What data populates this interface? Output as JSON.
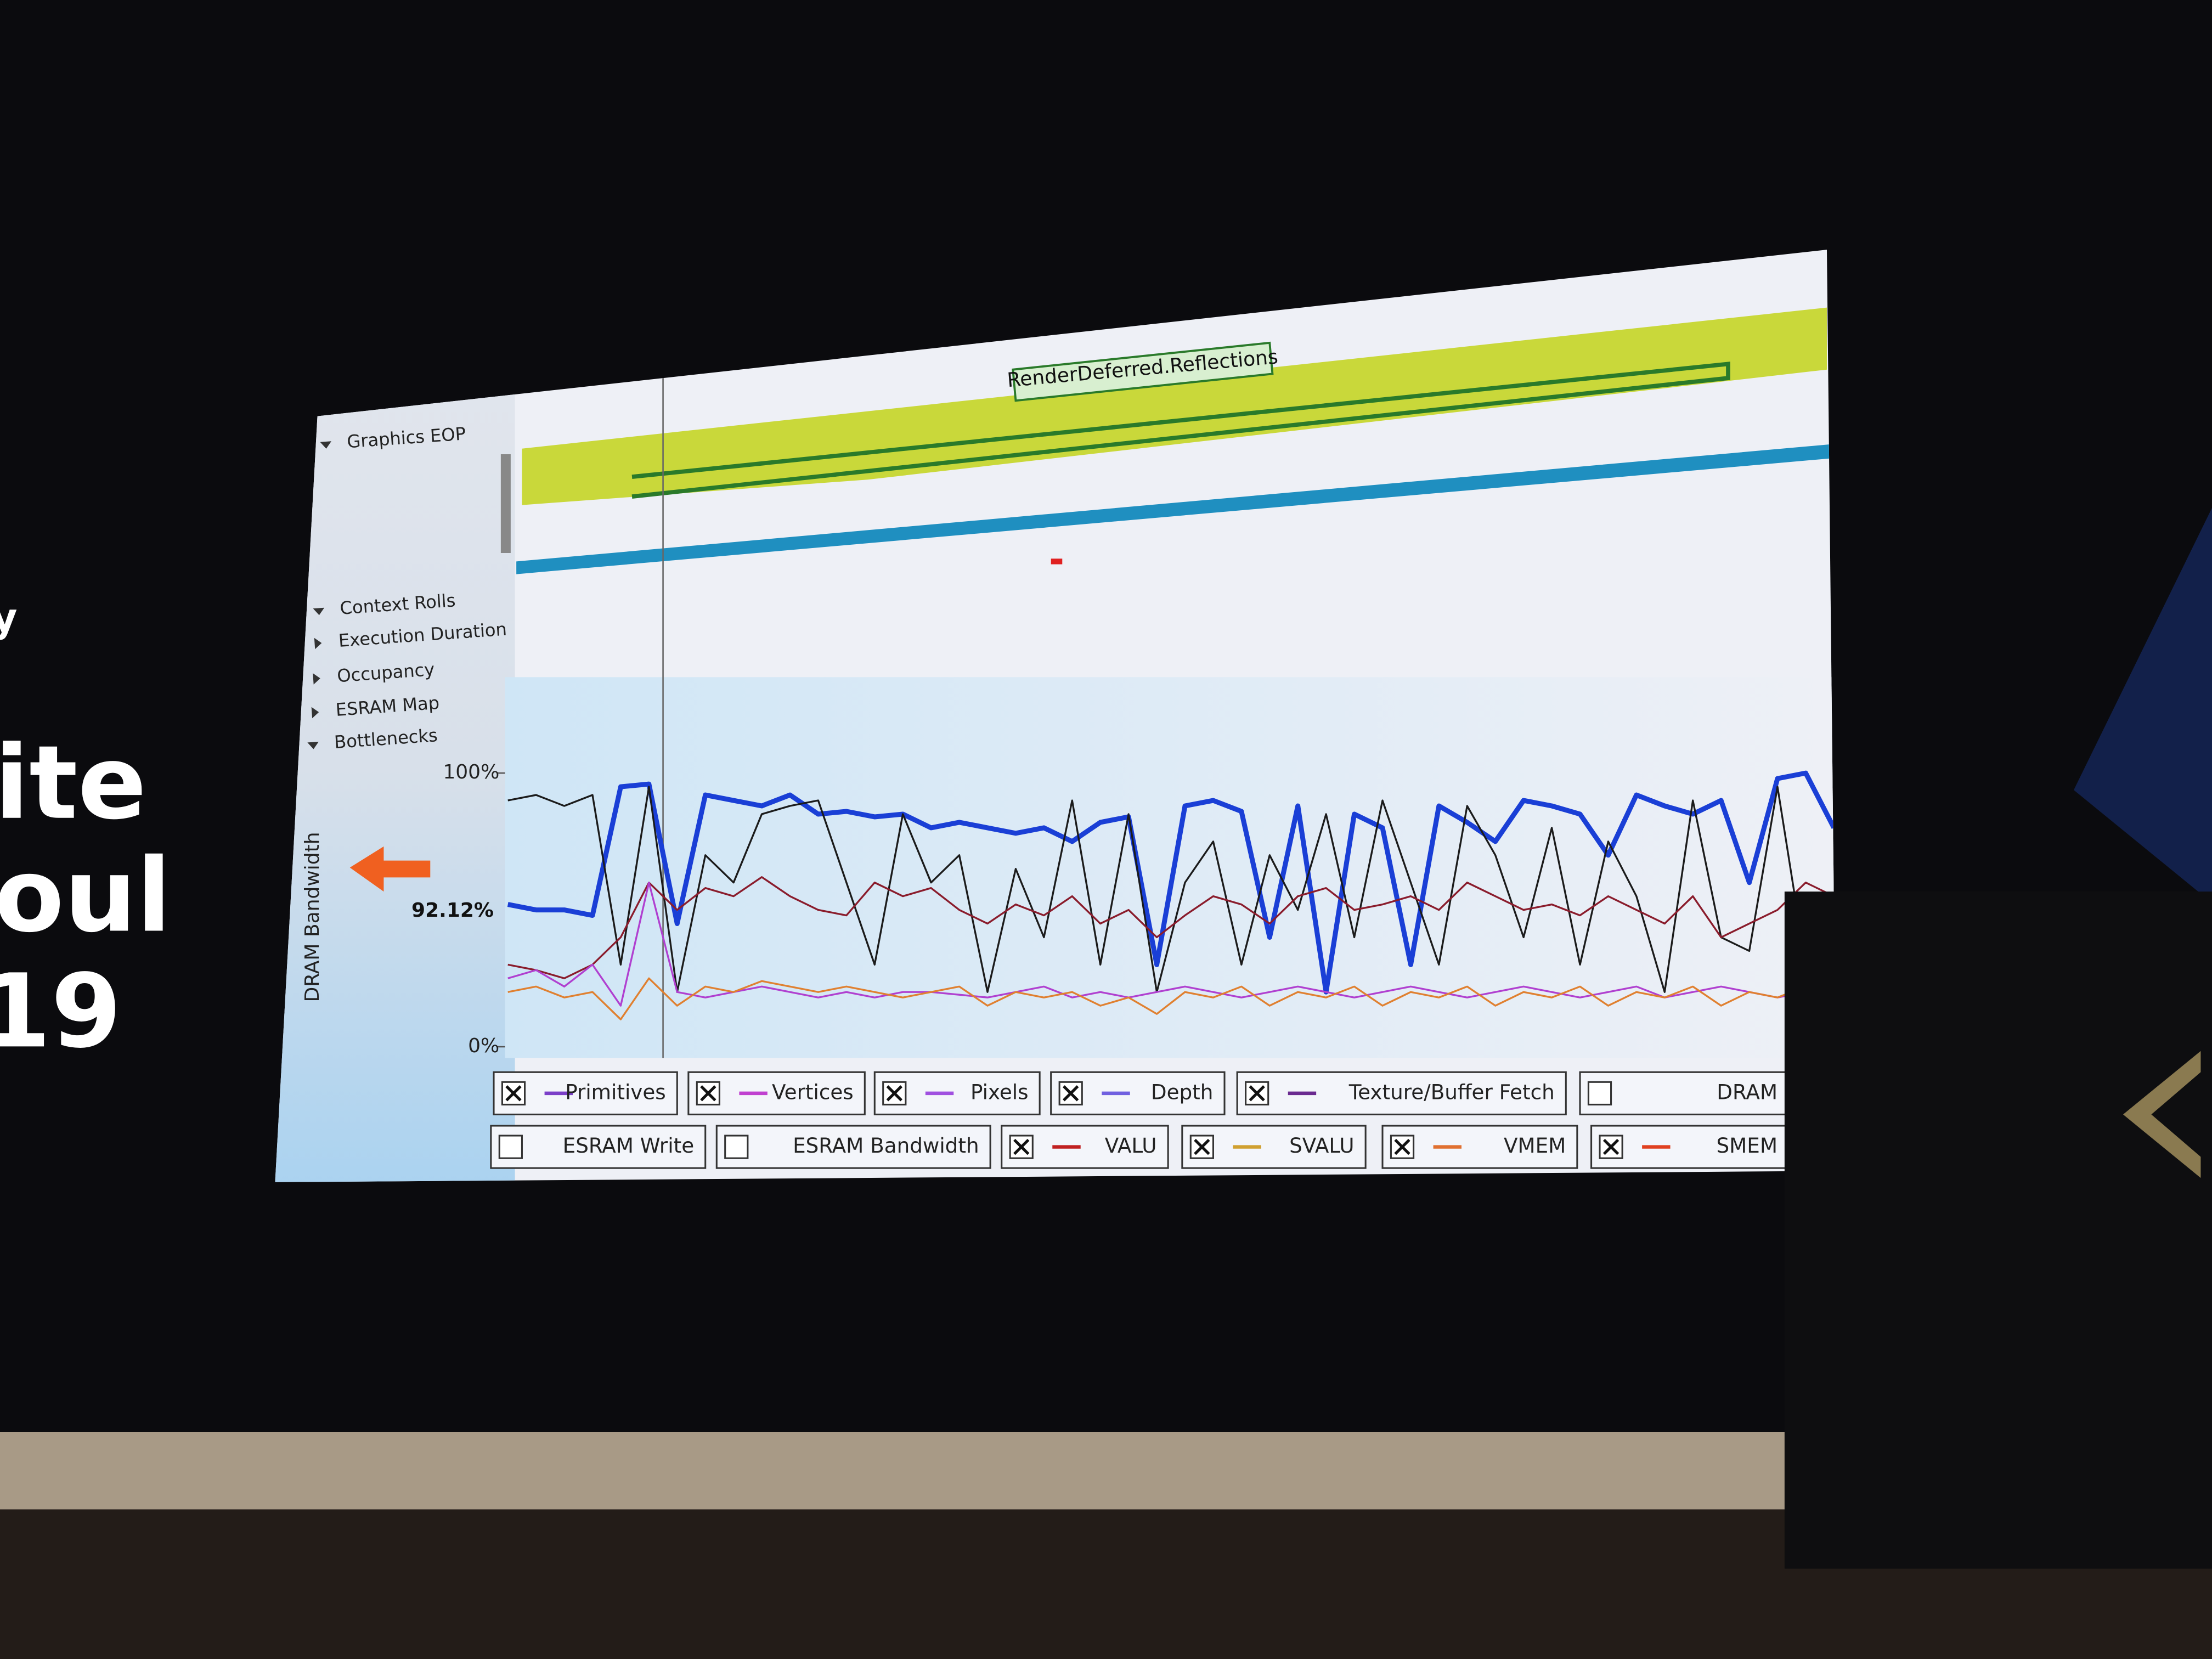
{
  "slide": {
    "fragments": [
      "y",
      "ite",
      "oul",
      "19"
    ]
  },
  "profiler": {
    "tree": [
      {
        "label": "Graphics EOP",
        "expanded": true
      },
      {
        "label": "Context Rolls",
        "expanded": true
      },
      {
        "label": "Execution Duration",
        "expanded": false
      },
      {
        "label": "Occupancy",
        "expanded": false
      },
      {
        "label": "ESRAM Map",
        "expanded": false
      },
      {
        "label": "Bottlenecks",
        "expanded": true
      }
    ],
    "marker_label": "RenderDeferred.Reflections",
    "chart": {
      "type": "line",
      "y_label": "DRAM Bandwidth",
      "current_label": "92.12%",
      "ylim": [
        0,
        100
      ],
      "yticks": [
        {
          "value": 0,
          "label": "0%"
        },
        {
          "value": 100,
          "label": "100%"
        }
      ],
      "series": [
        {
          "color": "#1a3fd6",
          "values": [
            52,
            50,
            50,
            48,
            95,
            96,
            45,
            92,
            90,
            88,
            92,
            85,
            86,
            84,
            85,
            80,
            82,
            80,
            78,
            80,
            75,
            82,
            84,
            30,
            88,
            90,
            86,
            40,
            88,
            20,
            85,
            80,
            30,
            88,
            82,
            75,
            90,
            88,
            85,
            70,
            92,
            88,
            85,
            90,
            60,
            98,
            100,
            80
          ]
        },
        {
          "color": "#1b1b1b",
          "values": [
            90,
            92,
            88,
            92,
            30,
            95,
            20,
            70,
            60,
            85,
            88,
            90,
            60,
            30,
            85,
            60,
            70,
            20,
            65,
            40,
            90,
            30,
            85,
            20,
            60,
            75,
            30,
            70,
            50,
            85,
            40,
            90,
            60,
            30,
            88,
            70,
            40,
            80,
            30,
            75,
            55,
            20,
            90,
            40,
            35,
            95,
            30,
            40
          ]
        },
        {
          "color": "#8a1c2c",
          "values": [
            30,
            28,
            25,
            30,
            40,
            60,
            50,
            58,
            55,
            62,
            55,
            50,
            48,
            60,
            55,
            58,
            50,
            45,
            52,
            48,
            55,
            45,
            50,
            40,
            48,
            55,
            52,
            45,
            55,
            58,
            50,
            52,
            55,
            50,
            60,
            55,
            50,
            52,
            48,
            55,
            50,
            45,
            55,
            40,
            45,
            50,
            60,
            55
          ]
        },
        {
          "color": "#b040d0",
          "values": [
            25,
            28,
            22,
            30,
            15,
            60,
            20,
            18,
            20,
            22,
            20,
            18,
            20,
            18,
            20,
            20,
            19,
            18,
            20,
            22,
            18,
            20,
            18,
            20,
            22,
            20,
            18,
            20,
            22,
            20,
            18,
            20,
            22,
            20,
            18,
            20,
            22,
            20,
            18,
            20,
            22,
            18,
            20,
            22,
            20,
            18,
            20,
            22
          ]
        },
        {
          "color": "#e08030",
          "values": [
            20,
            22,
            18,
            20,
            10,
            25,
            15,
            22,
            20,
            24,
            22,
            20,
            22,
            20,
            18,
            20,
            22,
            15,
            20,
            18,
            20,
            15,
            18,
            12,
            20,
            18,
            22,
            15,
            20,
            18,
            22,
            15,
            20,
            18,
            22,
            15,
            20,
            18,
            22,
            15,
            20,
            18,
            22,
            15,
            20,
            18,
            22,
            20
          ]
        }
      ]
    },
    "legend": [
      [
        {
          "label": "Primitives",
          "checked": true,
          "color": "#7b3fc8"
        },
        {
          "label": "Vertices",
          "checked": true,
          "color": "#c040d0"
        },
        {
          "label": "Pixels",
          "checked": true,
          "color": "#a050e0"
        },
        {
          "label": "Depth",
          "checked": true,
          "color": "#7060e0"
        },
        {
          "label": "Texture/Buffer Fetch",
          "checked": true,
          "color": "#6a2a90"
        },
        {
          "label": "DRAM",
          "checked": false
        }
      ],
      [
        {
          "label": "ESRAM Write",
          "checked": false
        },
        {
          "label": "ESRAM Bandwidth",
          "checked": false
        },
        {
          "label": "VALU",
          "checked": true,
          "color": "#c02020"
        },
        {
          "label": "SVALU",
          "checked": true,
          "color": "#d0a030"
        },
        {
          "label": "VMEM",
          "checked": true,
          "color": "#e07030"
        },
        {
          "label": "SMEM",
          "checked": true,
          "color": "#e04020"
        }
      ]
    ]
  }
}
